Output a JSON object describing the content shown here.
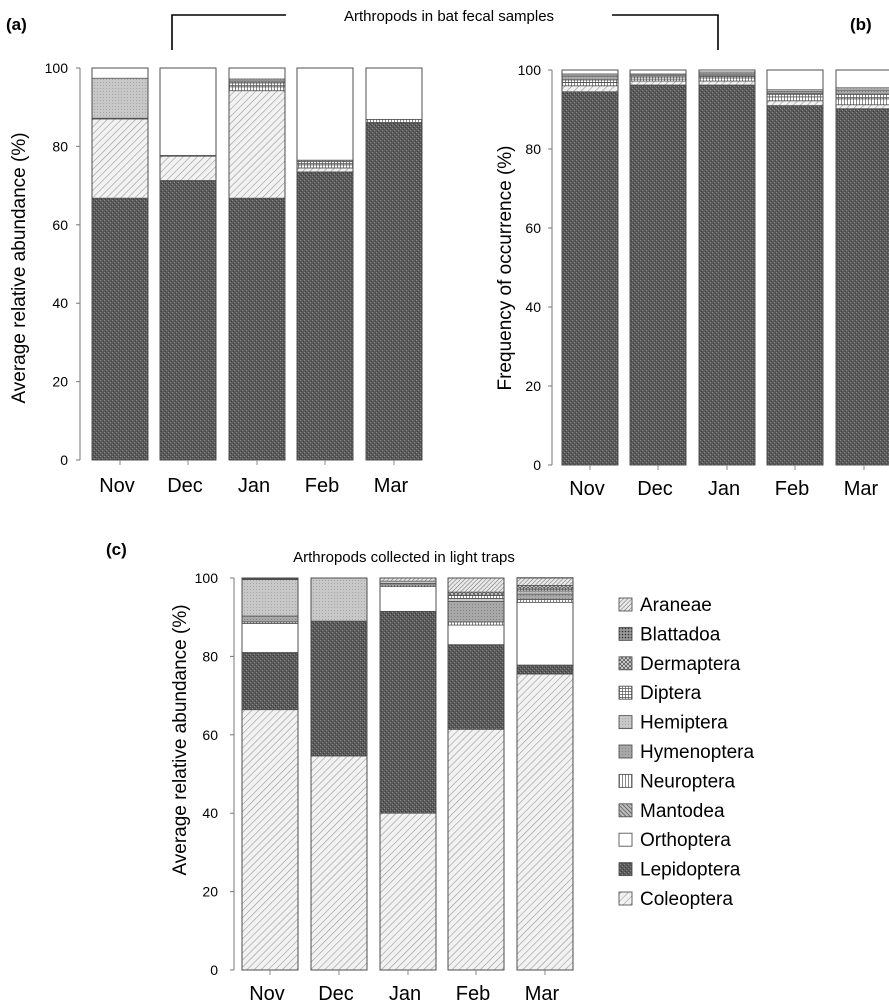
{
  "figure": {
    "label_a": "(a)",
    "label_b": "(b)",
    "label_c": "(c)",
    "top_heading": "Arthropods in bat fecal samples",
    "bottom_heading": "Arthropods collected in light traps"
  },
  "legend": {
    "items": [
      {
        "name": "Araneae",
        "pattern": "diag-dense"
      },
      {
        "name": "Blattadoa",
        "pattern": "dots-dark"
      },
      {
        "name": "Dermaptera",
        "pattern": "cross-hatch"
      },
      {
        "name": "Diptera",
        "pattern": "grid"
      },
      {
        "name": "Hemiptera",
        "pattern": "light-gray-dots"
      },
      {
        "name": "Hymenoptera",
        "pattern": "mid-gray"
      },
      {
        "name": "Neuroptera",
        "pattern": "vertical-lines"
      },
      {
        "name": "Mantodea",
        "pattern": "diag-dark"
      },
      {
        "name": "Orthoptera",
        "pattern": "white"
      },
      {
        "name": "Lepidoptera",
        "pattern": "dark-stipple"
      },
      {
        "name": "Coleoptera",
        "pattern": "diag-light"
      }
    ]
  },
  "chart_data": [
    {
      "type": "bar",
      "stacked": true,
      "panel": "(a)",
      "title": "Arthropods in bat fecal samples",
      "xlabel": "",
      "ylabel": "Average relative abundance (%)",
      "ylim": [
        0,
        100
      ],
      "yticks": [
        "0",
        "20",
        "40",
        "60",
        "80",
        "100"
      ],
      "categories": [
        "Nov",
        "Dec",
        "Jan",
        "Feb",
        "Mar"
      ],
      "series": [
        {
          "name": "Lepidoptera",
          "values": [
            66.8,
            71.3,
            66.8,
            73.5,
            86.1
          ]
        },
        {
          "name": "Coleoptera",
          "values": [
            20.2,
            6.2,
            27.4,
            1.0,
            0.0
          ]
        },
        {
          "name": "Neuroptera",
          "values": [
            0.2,
            0.0,
            1.0,
            0.8,
            0.8
          ]
        },
        {
          "name": "Diptera",
          "values": [
            0.0,
            0.2,
            1.0,
            0.8,
            0.0
          ]
        },
        {
          "name": "Hymenoptera",
          "values": [
            0.0,
            0.0,
            0.5,
            0.4,
            0.0
          ]
        },
        {
          "name": "Hemiptera",
          "values": [
            10.2,
            0.0,
            0.5,
            0.0,
            0.0
          ]
        },
        {
          "name": "Orthoptera",
          "values": [
            2.6,
            22.3,
            2.8,
            23.5,
            13.1
          ]
        }
      ]
    },
    {
      "type": "bar",
      "stacked": true,
      "panel": "(b)",
      "xlabel": "",
      "ylabel": "Frequency of occurrence (%)",
      "ylim": [
        0,
        100
      ],
      "yticks": [
        "0",
        "20",
        "40",
        "60",
        "80",
        "100"
      ],
      "categories": [
        "Nov",
        "Dec",
        "Jan",
        "Feb",
        "Mar"
      ],
      "series": [
        {
          "name": "Lepidoptera",
          "values": [
            94.5,
            96.2,
            96.2,
            91.0,
            90.2
          ]
        },
        {
          "name": "Coleoptera",
          "values": [
            1.5,
            1.0,
            1.0,
            1.2,
            1.0
          ]
        },
        {
          "name": "Neuroptera",
          "values": [
            0.8,
            0.5,
            0.8,
            1.0,
            1.5
          ]
        },
        {
          "name": "Diptera",
          "values": [
            0.7,
            0.5,
            0.5,
            0.8,
            1.2
          ]
        },
        {
          "name": "Hymenoptera",
          "values": [
            1.0,
            0.5,
            0.5,
            0.5,
            1.0
          ]
        },
        {
          "name": "Hemiptera",
          "values": [
            0.5,
            0.3,
            0.5,
            0.5,
            0.6
          ]
        },
        {
          "name": "Orthoptera",
          "values": [
            1.0,
            1.0,
            0.5,
            5.0,
            4.5
          ]
        }
      ]
    },
    {
      "type": "bar",
      "stacked": true,
      "panel": "(c)",
      "title": "Arthropods collected in light traps",
      "xlabel": "",
      "ylabel": "Average relative abundance (%)",
      "ylim": [
        0,
        100
      ],
      "yticks": [
        "0",
        "20",
        "40",
        "60",
        "80",
        "100"
      ],
      "categories": [
        "Nov",
        "Dec",
        "Jan",
        "Feb",
        "Mar"
      ],
      "series": [
        {
          "name": "Coleoptera",
          "values": [
            66.4,
            54.6,
            40.0,
            61.4,
            75.5
          ]
        },
        {
          "name": "Lepidoptera",
          "values": [
            14.6,
            34.4,
            51.5,
            21.6,
            2.3
          ]
        },
        {
          "name": "Orthoptera",
          "values": [
            7.4,
            0.0,
            6.3,
            5.0,
            16.0
          ]
        },
        {
          "name": "Neuroptera",
          "values": [
            0.4,
            0.0,
            0.4,
            0.8,
            0.7
          ]
        },
        {
          "name": "Hymenoptera",
          "values": [
            1.5,
            0.0,
            0.4,
            5.2,
            1.4
          ]
        },
        {
          "name": "Hemiptera",
          "values": [
            9.3,
            11.0,
            0.6,
            0.8,
            0.8
          ]
        },
        {
          "name": "Diptera",
          "values": [
            0.0,
            0.0,
            0.0,
            0.8,
            0.7
          ]
        },
        {
          "name": "Dermaptera",
          "values": [
            0.2,
            0.0,
            0.0,
            0.8,
            0.7
          ]
        },
        {
          "name": "Araneae",
          "values": [
            0.2,
            0.0,
            0.8,
            3.6,
            2.0
          ]
        }
      ]
    }
  ]
}
